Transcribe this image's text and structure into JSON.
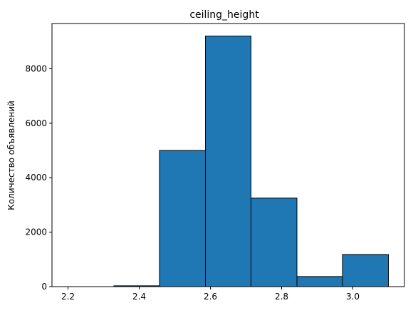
{
  "chart_data": {
    "type": "bar",
    "subtype": "histogram",
    "title": "ceiling_height",
    "xlabel": "",
    "ylabel": "Количество объявлений",
    "bins": [
      {
        "start": 2.2,
        "end": 2.329,
        "count": 0
      },
      {
        "start": 2.329,
        "end": 2.457,
        "count": 30
      },
      {
        "start": 2.457,
        "end": 2.586,
        "count": 5000
      },
      {
        "start": 2.586,
        "end": 2.714,
        "count": 9200
      },
      {
        "start": 2.714,
        "end": 2.843,
        "count": 3250
      },
      {
        "start": 2.843,
        "end": 2.971,
        "count": 370
      },
      {
        "start": 2.971,
        "end": 3.1,
        "count": 1180
      }
    ],
    "xlim": [
      2.155,
      3.145
    ],
    "ylim": [
      0,
      9660
    ],
    "x_ticks": [
      "2.2",
      "2.4",
      "2.6",
      "2.8",
      "3.0"
    ],
    "x_tick_values": [
      2.2,
      2.4,
      2.6,
      2.8,
      3.0
    ],
    "y_ticks": [
      "0",
      "2000",
      "4000",
      "6000",
      "8000"
    ],
    "y_tick_values": [
      0,
      2000,
      4000,
      6000,
      8000
    ],
    "bar_color": "#1f77b4",
    "edge_color": "#000000",
    "grid": false,
    "legend": "none"
  }
}
